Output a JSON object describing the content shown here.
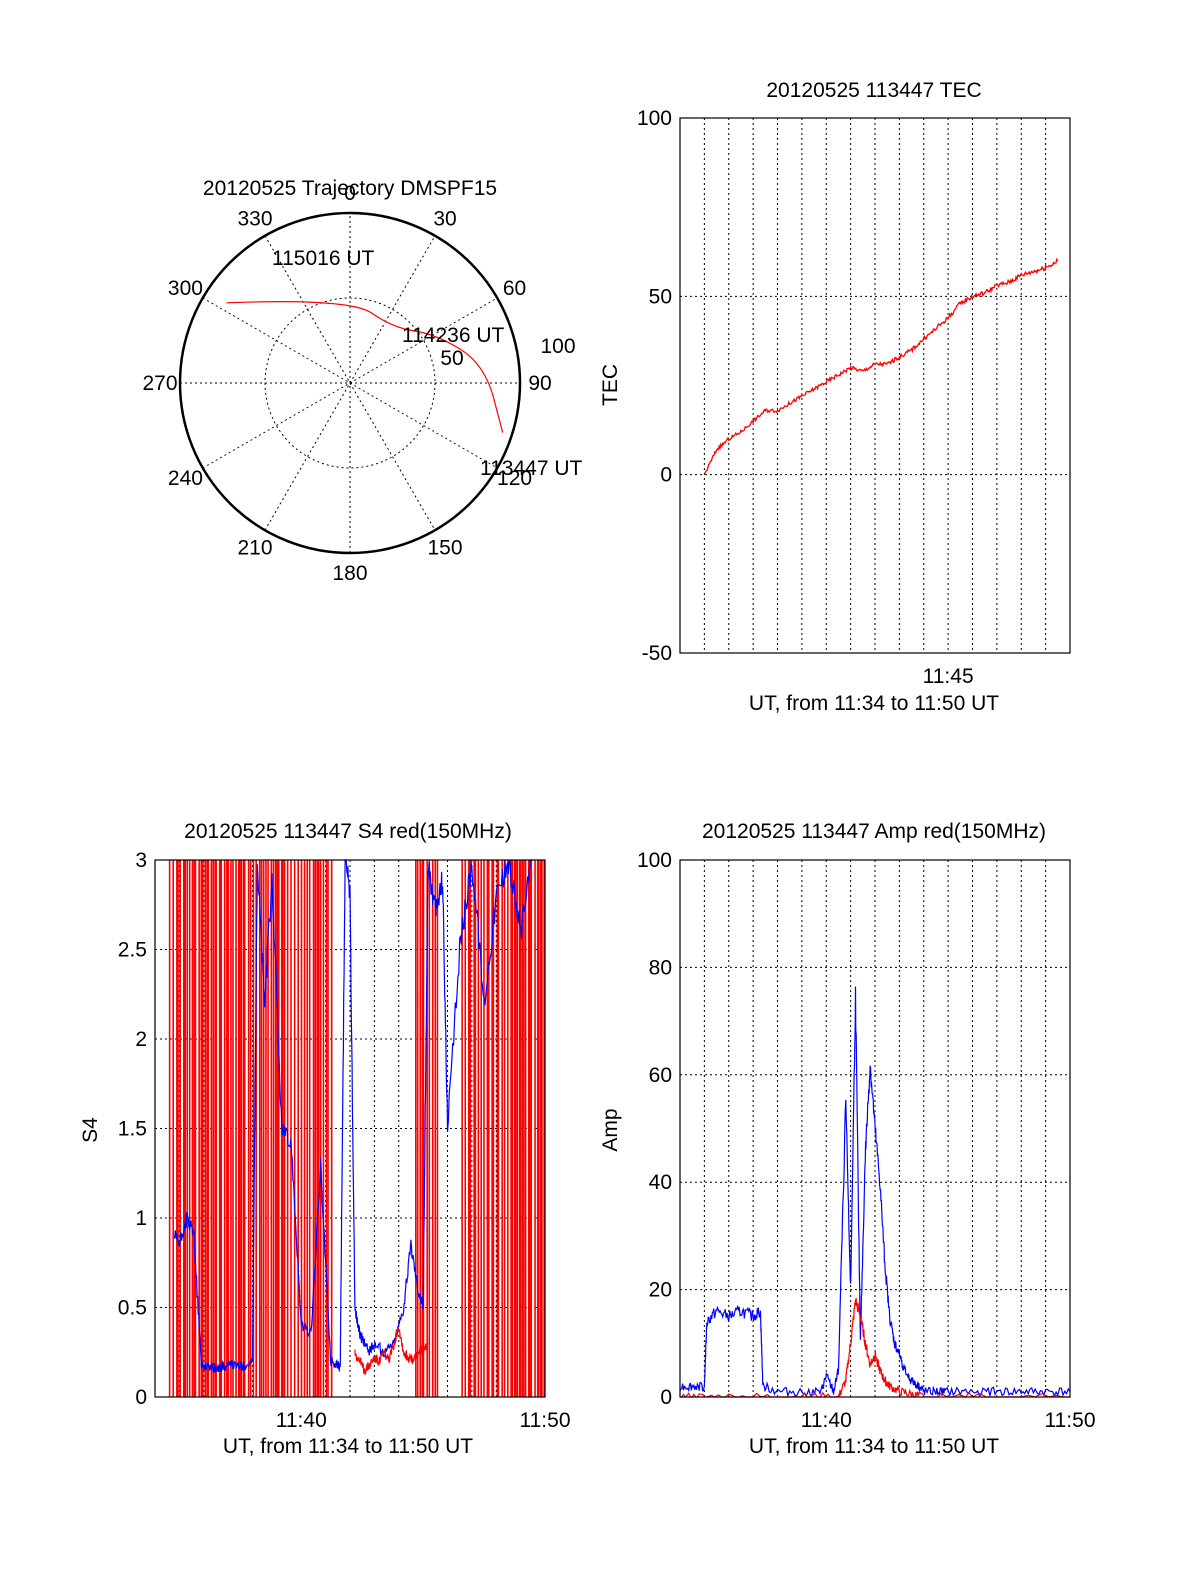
{
  "chart_data": [
    {
      "type": "polar",
      "title": "20120525 Trajectory DMSPF15",
      "angle_labels": [
        "0",
        "30",
        "60",
        "90",
        "120",
        "150",
        "180",
        "210",
        "240",
        "270",
        "300",
        "330"
      ],
      "radial_labels": [
        "50",
        "100"
      ],
      "track_color": "#ff0000",
      "track": [
        {
          "az": 303,
          "el": 12
        },
        {
          "az": 0,
          "el": 45
        },
        {
          "az": 38,
          "el": 53
        },
        {
          "az": 60,
          "el": 38
        },
        {
          "az": 82,
          "el": 18
        },
        {
          "az": 108,
          "el": 5
        }
      ],
      "annotations": [
        "115016 UT",
        "114236 UT",
        "113447 UT"
      ]
    },
    {
      "type": "line",
      "title": "20120525 113447 TEC",
      "xlabel": "UT, from 11:34 to 11:50 UT",
      "ylabel": "TEC",
      "xlim": [
        0,
        16
      ],
      "ylim": [
        -50,
        100
      ],
      "yticks": [
        "100",
        "50",
        "0",
        "-50"
      ],
      "xtick_labels": [
        {
          "x": 11,
          "label": "11:45"
        }
      ],
      "grid": true,
      "series": [
        {
          "color": "#ff0000",
          "x": [
            1.0,
            1.5,
            2.0,
            2.5,
            3.0,
            3.5,
            4.0,
            4.5,
            5.0,
            5.5,
            6.0,
            6.5,
            7.0,
            7.5,
            8.0,
            8.5,
            9.0,
            9.5,
            10.0,
            10.5,
            11.0,
            11.5,
            12.0,
            12.5,
            13.0,
            13.5,
            14.0,
            14.5,
            15.0,
            15.5
          ],
          "y": [
            0,
            7,
            10,
            12,
            15,
            18,
            18,
            20,
            22,
            24,
            26,
            28,
            30,
            29,
            31,
            31,
            33,
            35,
            38,
            41,
            44,
            48,
            50,
            51,
            53,
            54,
            56,
            57,
            58,
            60
          ]
        }
      ]
    },
    {
      "type": "line",
      "title": "20120525 113447 S4 red(150MHz)",
      "xlabel": "UT, from 11:34 to 11:50 UT",
      "ylabel": "S4",
      "xlim": [
        0,
        16
      ],
      "ylim": [
        0,
        3
      ],
      "yticks": [
        "3",
        "2.5",
        "2",
        "1.5",
        "1",
        "0.5",
        "0"
      ],
      "xtick_labels": [
        {
          "x": 6,
          "label": "11:40"
        },
        {
          "x": 16,
          "label": "11:50"
        }
      ],
      "grid": true,
      "series": [
        {
          "color": "#0000ff",
          "x": [
            0.8,
            1.0,
            1.3,
            1.6,
            1.9,
            2.2,
            2.5,
            2.8,
            3.2,
            3.6,
            4.0,
            4.2,
            4.5,
            4.8,
            5.2,
            5.6,
            6.0,
            6.4,
            6.8,
            7.2,
            7.5,
            7.6,
            7.8,
            8.0,
            8.2,
            8.4,
            8.6,
            8.8,
            9.0,
            9.4,
            9.8,
            10.2,
            10.5,
            10.8,
            11.0,
            11.2,
            11.5,
            11.8,
            12.0,
            12.5,
            13.0,
            13.5,
            14.0,
            14.5,
            15.0,
            15.5
          ],
          "y": [
            0.9,
            0.85,
            1.0,
            0.9,
            0.18,
            0.17,
            0.16,
            0.17,
            0.18,
            0.17,
            0.2,
            3.0,
            2.2,
            2.9,
            1.5,
            1.4,
            0.4,
            0.35,
            1.3,
            0.2,
            0.18,
            0.16,
            3.0,
            2.8,
            0.5,
            0.35,
            0.3,
            0.25,
            0.3,
            0.25,
            0.3,
            0.5,
            0.85,
            0.6,
            0.5,
            3.0,
            2.7,
            2.9,
            1.5,
            2.5,
            3.0,
            2.2,
            2.8,
            3.0,
            2.6,
            3.0
          ]
        },
        {
          "color": "#ff0000",
          "x": [
            8.2,
            8.4,
            8.6,
            8.8,
            9.0,
            9.2,
            9.4,
            9.6,
            9.8,
            10.0,
            10.2,
            10.4,
            10.6,
            10.8,
            11.0,
            11.2
          ],
          "y": [
            0.25,
            0.2,
            0.15,
            0.18,
            0.22,
            0.2,
            0.25,
            0.2,
            0.3,
            0.4,
            0.25,
            0.22,
            0.2,
            0.25,
            0.28,
            0.3
          ]
        }
      ],
      "red_saturated_bands": [
        [
          0.6,
          7.4
        ],
        [
          10.7,
          11.6
        ],
        [
          12.6,
          16.0
        ]
      ]
    },
    {
      "type": "line",
      "title": "20120525 113447 Amp red(150MHz)",
      "xlabel": "UT, from 11:34 to 11:50 UT",
      "ylabel": "Amp",
      "xlim": [
        0,
        16
      ],
      "ylim": [
        0,
        100
      ],
      "yticks": [
        "100",
        "80",
        "60",
        "40",
        "20",
        "0"
      ],
      "xtick_labels": [
        {
          "x": 6,
          "label": "11:40"
        },
        {
          "x": 16,
          "label": "11:50"
        }
      ],
      "grid": true,
      "series": [
        {
          "color": "#0000ff",
          "x": [
            0.0,
            0.5,
            1.0,
            1.1,
            1.5,
            2.0,
            2.5,
            3.0,
            3.3,
            3.4,
            4.0,
            5.0,
            5.8,
            6.0,
            6.3,
            6.5,
            6.8,
            7.0,
            7.2,
            7.4,
            7.6,
            7.8,
            8.0,
            8.2,
            8.4,
            8.6,
            8.8,
            9.0,
            9.2,
            9.5,
            9.8,
            10.0,
            10.5,
            11.0,
            12.0,
            13.0,
            14.0,
            15.0,
            16.0
          ],
          "y": [
            2,
            2,
            2,
            14,
            16,
            15,
            16,
            15,
            16,
            2,
            1,
            1,
            1,
            4,
            1,
            5,
            55,
            20,
            75,
            10,
            45,
            62,
            50,
            40,
            25,
            15,
            10,
            8,
            5,
            3,
            2,
            1,
            1,
            1,
            1,
            1,
            1,
            1,
            1
          ]
        },
        {
          "color": "#ff0000",
          "x": [
            0.0,
            1.0,
            3.0,
            5.0,
            6.5,
            6.8,
            7.0,
            7.2,
            7.4,
            7.6,
            7.8,
            8.0,
            8.2,
            8.4,
            8.6,
            9.0,
            9.5,
            10.0,
            12.0,
            16.0
          ],
          "y": [
            0,
            0,
            0,
            0,
            0,
            3,
            10,
            18,
            15,
            10,
            6,
            8,
            5,
            3,
            2,
            1,
            0.5,
            0,
            0,
            0
          ]
        }
      ]
    }
  ]
}
